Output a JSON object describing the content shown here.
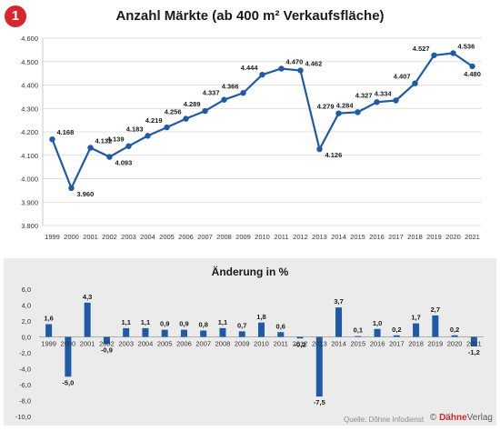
{
  "badge": "1",
  "chart_data": [
    {
      "type": "line",
      "title": "Anzahl Märkte (ab 400 m² Verkaufsfläche)",
      "x": [
        "1999",
        "2000",
        "2001",
        "2002",
        "2003",
        "2004",
        "2005",
        "2006",
        "2007",
        "2008",
        "2009",
        "2010",
        "2011",
        "2012",
        "2013",
        "2014",
        "2015",
        "2016",
        "2017",
        "2018",
        "2019",
        "2020",
        "2021"
      ],
      "values": [
        4168,
        3960,
        4132,
        4093,
        4139,
        4183,
        4219,
        4256,
        4289,
        4337,
        4366,
        4444,
        4470,
        4462,
        4126,
        4279,
        4284,
        4327,
        4334,
        4407,
        4527,
        4536,
        4480
      ],
      "data_labels": [
        "4.168",
        "3.960",
        "4.132",
        "4.093",
        "4.139",
        "4.183",
        "4.219",
        "4.256",
        "4.289",
        "4.337",
        "4.366",
        "4.444",
        "4.470",
        "4.462",
        "4.126",
        "4.279",
        "4.284",
        "4.327",
        "4.334",
        "4.407",
        "4.527",
        "4.536",
        "4.480"
      ],
      "yticks": [
        3800,
        3900,
        4000,
        4100,
        4200,
        4300,
        4400,
        4500,
        4600
      ],
      "ytick_labels": [
        "3.800",
        "3.900",
        "4.000",
        "4.100",
        "4.200",
        "4.300",
        "4.400",
        "4.500",
        "4.600"
      ],
      "ylim": [
        3800,
        4600
      ],
      "grid": true,
      "color": "#1f5aa6"
    },
    {
      "type": "bar",
      "title": "Änderung in %",
      "x": [
        "1999",
        "2000",
        "2001",
        "2002",
        "2003",
        "2004",
        "2005",
        "2006",
        "2007",
        "2008",
        "2009",
        "2010",
        "2011",
        "2012",
        "2013",
        "2014",
        "2015",
        "2016",
        "2017",
        "2018",
        "2019",
        "2020",
        "2021"
      ],
      "values": [
        1.6,
        -5.0,
        4.3,
        -0.9,
        1.1,
        1.1,
        0.9,
        0.9,
        0.8,
        1.1,
        0.7,
        1.8,
        0.6,
        -0.2,
        -7.5,
        3.7,
        0.1,
        1.0,
        0.2,
        1.7,
        2.7,
        0.2,
        -1.2
      ],
      "data_labels": [
        "1,6",
        "-5,0",
        "4,3",
        "-0,9",
        "1,1",
        "1,1",
        "0,9",
        "0,9",
        "0,8",
        "1,1",
        "0,7",
        "1,8",
        "0,6",
        "-0,2",
        "-7,5",
        "3,7",
        "0,1",
        "1,0",
        "0,2",
        "1,7",
        "2,7",
        "0,2",
        "-1,2"
      ],
      "yticks": [
        -10,
        -8,
        -6,
        -4,
        -2,
        0,
        2,
        4,
        6
      ],
      "ytick_labels": [
        "-10,0",
        "-8,0",
        "-6,0",
        "-4,0",
        "-2,0",
        "0,0",
        "2,0",
        "4,0",
        "6,0"
      ],
      "ylim": [
        -10,
        6
      ],
      "grid": false,
      "color": "#1f5aa6"
    }
  ],
  "footer": {
    "source": "Quelle: Dõhne Infodienst",
    "brand_symbol": "©",
    "brand_name": "Dähne",
    "brand_suffix": "Verlag"
  }
}
